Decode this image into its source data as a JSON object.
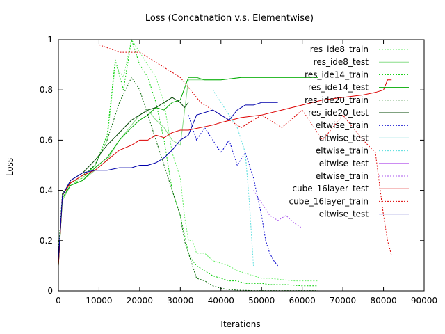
{
  "chart_data": {
    "type": "line",
    "title": "Loss (Concatnation v.s. Elementwise)",
    "xlabel": "Iterations",
    "ylabel": "Loss",
    "xlim": [
      0,
      90000
    ],
    "ylim": [
      0,
      1
    ],
    "xticks": [
      0,
      10000,
      20000,
      30000,
      40000,
      50000,
      60000,
      70000,
      80000,
      90000
    ],
    "yticks": [
      0,
      0.2,
      0.4,
      0.6,
      0.8,
      1
    ],
    "grid": false,
    "legend_position": "top-right",
    "series": [
      {
        "name": "res_ide8_train",
        "color": "#66ee66",
        "dash": "dotted",
        "x": [
          0,
          1000,
          3000,
          6000,
          9000,
          12000,
          14000,
          16000,
          18000,
          20000,
          22000,
          24000,
          26000,
          28000,
          30000,
          31000,
          32000,
          33000,
          34000,
          36000,
          38000,
          40000,
          42000,
          44000,
          46000,
          48000,
          50000,
          52000,
          55000,
          58000,
          61000,
          64000
        ],
        "y": [
          0.15,
          0.38,
          0.42,
          0.45,
          0.5,
          0.6,
          0.9,
          0.85,
          1.0,
          0.95,
          0.9,
          0.85,
          0.75,
          0.55,
          0.45,
          0.3,
          0.2,
          0.2,
          0.15,
          0.15,
          0.12,
          0.11,
          0.1,
          0.08,
          0.07,
          0.06,
          0.05,
          0.05,
          0.045,
          0.04,
          0.04,
          0.04
        ]
      },
      {
        "name": "res_ide8_test",
        "color": "#88dd88",
        "dash": "solid",
        "x": [
          0,
          1000,
          3000,
          6000,
          9000,
          12000,
          15000,
          18000,
          20000,
          22000,
          24000,
          26000,
          28000,
          30000,
          32000,
          34000,
          36000,
          40000,
          45000,
          50000,
          55000,
          60000,
          64000
        ],
        "y": [
          0.12,
          0.36,
          0.42,
          0.44,
          0.48,
          0.52,
          0.6,
          0.66,
          0.7,
          0.72,
          0.68,
          0.65,
          0.6,
          0.58,
          0.84,
          0.84,
          0.84,
          0.84,
          0.85,
          0.85,
          0.85,
          0.85,
          0.85
        ]
      },
      {
        "name": "res_ide14_train",
        "color": "#00cc00",
        "dash": "dotted",
        "x": [
          0,
          1000,
          3000,
          6000,
          9000,
          12000,
          14000,
          16000,
          18000,
          20000,
          22000,
          24000,
          26000,
          28000,
          30000,
          32000,
          33000,
          34000,
          36000,
          38000,
          40000,
          42000,
          44000,
          46000,
          48000,
          50000,
          52000,
          56000,
          60000,
          64000
        ],
        "y": [
          0.15,
          0.38,
          0.43,
          0.45,
          0.5,
          0.62,
          0.92,
          0.8,
          1.0,
          0.9,
          0.85,
          0.75,
          0.6,
          0.4,
          0.3,
          0.15,
          0.12,
          0.1,
          0.08,
          0.06,
          0.05,
          0.04,
          0.04,
          0.03,
          0.03,
          0.03,
          0.025,
          0.025,
          0.02,
          0.02
        ]
      },
      {
        "name": "res_ide14_test",
        "color": "#00aa00",
        "dash": "solid",
        "x": [
          0,
          1000,
          3000,
          6000,
          9000,
          12000,
          15000,
          18000,
          20000,
          22000,
          24000,
          26000,
          28000,
          30000,
          32000,
          34000,
          36000,
          40000,
          45000,
          50000,
          55000,
          60000,
          64000
        ],
        "y": [
          0.1,
          0.37,
          0.42,
          0.44,
          0.49,
          0.53,
          0.6,
          0.65,
          0.68,
          0.7,
          0.73,
          0.72,
          0.75,
          0.76,
          0.85,
          0.85,
          0.84,
          0.84,
          0.85,
          0.85,
          0.85,
          0.85,
          0.85
        ]
      },
      {
        "name": "res_ide20_train",
        "color": "#006600",
        "dash": "dotted",
        "x": [
          0,
          1000,
          3000,
          6000,
          9000,
          12000,
          15000,
          18000,
          20000,
          22000,
          24000,
          26000,
          28000,
          30000,
          31000,
          32000,
          33000,
          34000,
          36000,
          38000,
          40000,
          42000,
          44000,
          46000,
          48000,
          50000,
          55000,
          60000,
          64000
        ],
        "y": [
          0.15,
          0.39,
          0.43,
          0.46,
          0.5,
          0.6,
          0.75,
          0.85,
          0.8,
          0.7,
          0.6,
          0.5,
          0.4,
          0.3,
          0.2,
          0.15,
          0.1,
          0.05,
          0.04,
          0.02,
          0.01,
          0.005,
          0.003,
          0.002,
          0.001,
          0.001,
          0.001,
          0.001,
          0.001
        ]
      },
      {
        "name": "res_ide20_test",
        "color": "#004400",
        "dash": "solid",
        "x": [
          0,
          1000,
          3000,
          6000,
          9000,
          12000,
          15000,
          18000,
          20000,
          22000,
          24000,
          26000,
          28000,
          30000,
          31000,
          32000
        ],
        "y": [
          0.1,
          0.38,
          0.44,
          0.47,
          0.52,
          0.58,
          0.63,
          0.68,
          0.7,
          0.72,
          0.73,
          0.75,
          0.77,
          0.75,
          0.73,
          0.75
        ]
      },
      {
        "name": "eltwise_train",
        "color": "#0000cc",
        "dash": "dotted",
        "x": [
          32000,
          34000,
          36000,
          38000,
          40000,
          42000,
          44000,
          46000,
          48000,
          50000,
          51000,
          52000,
          53000,
          54000
        ],
        "y": [
          0.7,
          0.6,
          0.65,
          0.6,
          0.55,
          0.6,
          0.5,
          0.55,
          0.45,
          0.3,
          0.2,
          0.15,
          0.12,
          0.1
        ]
      },
      {
        "name": "eltwise_test",
        "color": "#00bbbb",
        "dash": "solid",
        "x": [],
        "y": []
      },
      {
        "name": "eltwise_train",
        "color": "#55dddd",
        "dash": "dotted",
        "x": [
          38000,
          40000,
          42000,
          44000,
          46000,
          47000,
          48000
        ],
        "y": [
          0.8,
          0.75,
          0.7,
          0.65,
          0.55,
          0.35,
          0.1
        ]
      },
      {
        "name": "eltwise_test",
        "color": "#bb66ee",
        "dash": "solid",
        "x": [],
        "y": []
      },
      {
        "name": "eltwise_train",
        "color": "#aa55ee",
        "dash": "dotted",
        "x": [
          48000,
          50000,
          52000,
          54000,
          56000,
          58000,
          60000
        ],
        "y": [
          0.4,
          0.35,
          0.3,
          0.28,
          0.3,
          0.27,
          0.25
        ]
      },
      {
        "name": "cube_16layer_test",
        "color": "#dd0000",
        "dash": "solid",
        "x": [
          0,
          1000,
          3000,
          6000,
          9000,
          12000,
          15000,
          18000,
          20000,
          22000,
          24000,
          26000,
          28000,
          30000,
          32000,
          35000,
          38000,
          40000,
          45000,
          50000,
          55000,
          60000,
          65000,
          70000,
          75000,
          78000,
          80000,
          81000,
          82000
        ],
        "y": [
          0.1,
          0.38,
          0.43,
          0.46,
          0.48,
          0.52,
          0.56,
          0.58,
          0.6,
          0.6,
          0.62,
          0.61,
          0.63,
          0.64,
          0.64,
          0.65,
          0.66,
          0.67,
          0.69,
          0.7,
          0.72,
          0.74,
          0.76,
          0.77,
          0.78,
          0.79,
          0.8,
          0.84,
          0.84
        ]
      },
      {
        "name": "cube_16layer_train",
        "color": "#dd0000",
        "dash": "dotted",
        "x": [
          10000,
          15000,
          20000,
          25000,
          30000,
          35000,
          40000,
          45000,
          50000,
          55000,
          60000,
          65000,
          70000,
          75000,
          78000,
          80000,
          81000,
          82000
        ],
        "y": [
          0.98,
          0.95,
          0.95,
          0.9,
          0.85,
          0.75,
          0.7,
          0.65,
          0.7,
          0.65,
          0.72,
          0.6,
          0.7,
          0.6,
          0.55,
          0.3,
          0.2,
          0.14
        ]
      },
      {
        "name": "eltwise_test",
        "color": "#0000aa",
        "dash": "solid",
        "x": [
          0,
          1000,
          3000,
          6000,
          9000,
          12000,
          15000,
          18000,
          20000,
          22000,
          24000,
          26000,
          28000,
          30000,
          32000,
          34000,
          36000,
          38000,
          40000,
          42000,
          44000,
          46000,
          48000,
          50000,
          52000,
          54000
        ],
        "y": [
          0.12,
          0.38,
          0.44,
          0.47,
          0.48,
          0.48,
          0.49,
          0.49,
          0.5,
          0.5,
          0.51,
          0.53,
          0.56,
          0.6,
          0.62,
          0.7,
          0.71,
          0.72,
          0.7,
          0.68,
          0.72,
          0.74,
          0.74,
          0.75,
          0.75,
          0.75
        ]
      }
    ]
  }
}
